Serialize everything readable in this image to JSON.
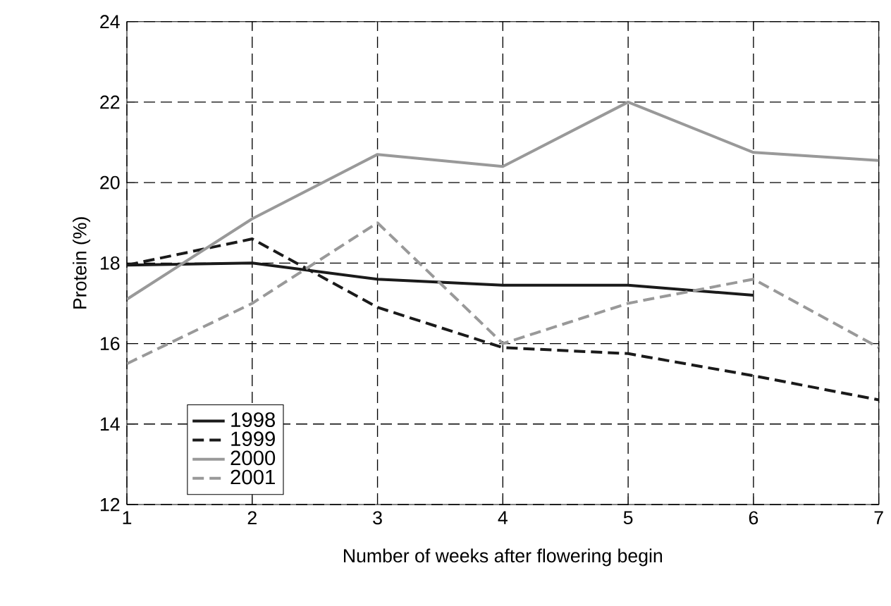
{
  "chart_data": {
    "type": "line",
    "xlabel": "Number of weeks after flowering begin",
    "ylabel": "Protein (%)",
    "x": [
      1,
      2,
      3,
      4,
      5,
      6,
      7
    ],
    "series": [
      {
        "name": "1998",
        "color": "#1a1a1a",
        "line_style": "solid",
        "values": [
          17.95,
          18.0,
          17.6,
          17.45,
          17.45,
          17.2,
          null
        ]
      },
      {
        "name": "1999",
        "color": "#1a1a1a",
        "line_style": "dashed",
        "values": [
          17.95,
          18.6,
          16.9,
          15.9,
          15.75,
          15.2,
          14.6
        ]
      },
      {
        "name": "2000",
        "color": "#999999",
        "line_style": "solid",
        "values": [
          17.1,
          19.1,
          20.7,
          20.4,
          22.0,
          20.75,
          20.55
        ]
      },
      {
        "name": "2001",
        "color": "#999999",
        "line_style": "dashed",
        "values": [
          15.5,
          17.0,
          19.0,
          16.0,
          17.0,
          17.6,
          15.9
        ]
      }
    ],
    "xlim": [
      1,
      7
    ],
    "xticks": [
      1,
      2,
      3,
      4,
      5,
      6,
      7
    ],
    "ylim": [
      12,
      24
    ],
    "yticks": [
      12,
      14,
      16,
      18,
      20,
      22,
      24
    ],
    "grid": true,
    "legend": "bottom left",
    "marker": "none"
  }
}
